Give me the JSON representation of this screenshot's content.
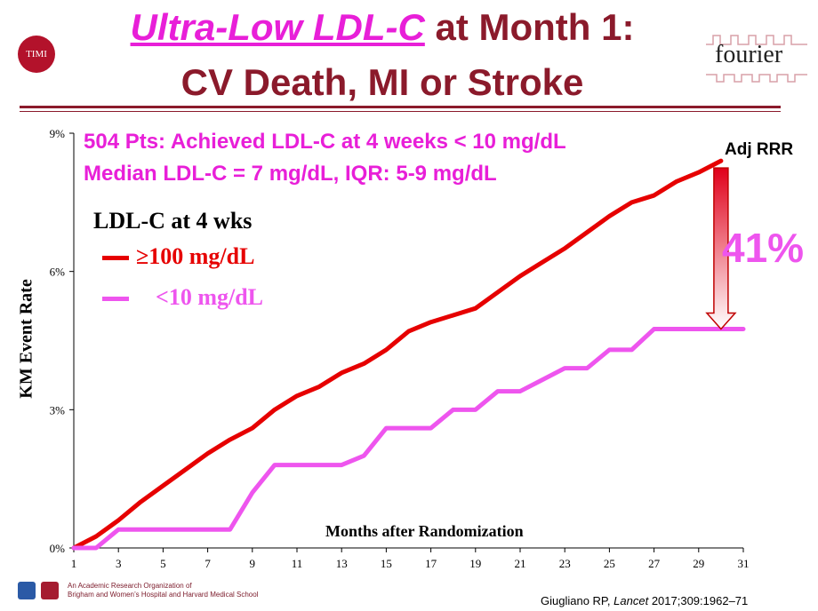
{
  "slide": {
    "title_highlight": "Ultra-Low LDL-C",
    "title_rest": " at Month 1:",
    "title_line2": "CV Death, MI or Stroke",
    "logo_left": "TIMI",
    "logo_right": "fourier"
  },
  "notes": {
    "line1": "504 Pts: Achieved LDL-C at 4 weeks < 10 mg/dL",
    "line2": "Median LDL-C = 7 mg/dL, IQR: 5-9 mg/dL"
  },
  "annotation": {
    "label": "Adj RRR",
    "value": "41%",
    "arrow_color_top": "#e0001a",
    "arrow_color_bottom": "#ffffff"
  },
  "legend": {
    "title": "LDL-C at 4 wks",
    "items": [
      {
        "label": "≥100 mg/dL",
        "color": "#e60000"
      },
      {
        "label": "<10 mg/dL",
        "color": "#ee55ee"
      }
    ]
  },
  "chart_data": {
    "type": "line",
    "xlabel": "Months after Randomization",
    "ylabel": "KM Event Rate",
    "xlim": [
      1,
      31
    ],
    "ylim": [
      0,
      9
    ],
    "x_ticks": [
      1,
      3,
      5,
      7,
      9,
      11,
      13,
      15,
      17,
      19,
      21,
      23,
      25,
      27,
      29,
      31
    ],
    "y_ticks": [
      0,
      3,
      6,
      9
    ],
    "y_tick_labels": [
      "0%",
      "3%",
      "6%",
      "9%"
    ],
    "grid": false,
    "series": [
      {
        "name": "≥100 mg/dL",
        "color": "#e60000",
        "x": [
          1,
          2,
          3,
          4,
          5,
          6,
          7,
          8,
          9,
          10,
          11,
          12,
          13,
          14,
          15,
          16,
          17,
          18,
          19,
          20,
          21,
          22,
          23,
          24,
          25,
          26,
          27,
          28,
          29,
          30
        ],
        "y": [
          0,
          0.25,
          0.6,
          1.0,
          1.35,
          1.7,
          2.05,
          2.35,
          2.6,
          3.0,
          3.3,
          3.5,
          3.8,
          4.0,
          4.3,
          4.7,
          4.9,
          5.05,
          5.2,
          5.55,
          5.9,
          6.2,
          6.5,
          6.85,
          7.2,
          7.5,
          7.65,
          7.95,
          8.15,
          8.4
        ]
      },
      {
        "name": "<10 mg/dL",
        "color": "#ee55ee",
        "x": [
          1,
          2,
          3,
          4,
          5,
          6,
          7,
          8,
          9,
          10,
          11,
          12,
          13,
          14,
          15,
          16,
          17,
          18,
          19,
          20,
          21,
          22,
          23,
          24,
          25,
          26,
          27,
          28,
          29,
          30,
          31
        ],
        "y": [
          0,
          0,
          0.4,
          0.4,
          0.4,
          0.4,
          0.4,
          0.4,
          1.2,
          1.8,
          1.8,
          1.8,
          1.8,
          2.0,
          2.6,
          2.6,
          2.6,
          3.0,
          3.0,
          3.4,
          3.4,
          3.65,
          3.9,
          3.9,
          4.3,
          4.3,
          4.75,
          4.75,
          4.75,
          4.75,
          4.75
        ]
      }
    ]
  },
  "footer": {
    "org_line1": "An Academic Research Organization of",
    "org_line2": "Brigham and Women’s Hospital and Harvard Medical School",
    "citation_authors": "Giugliano RP, ",
    "citation_journal": "Lancet",
    "citation_rest": " 2017;309:1962–71"
  }
}
